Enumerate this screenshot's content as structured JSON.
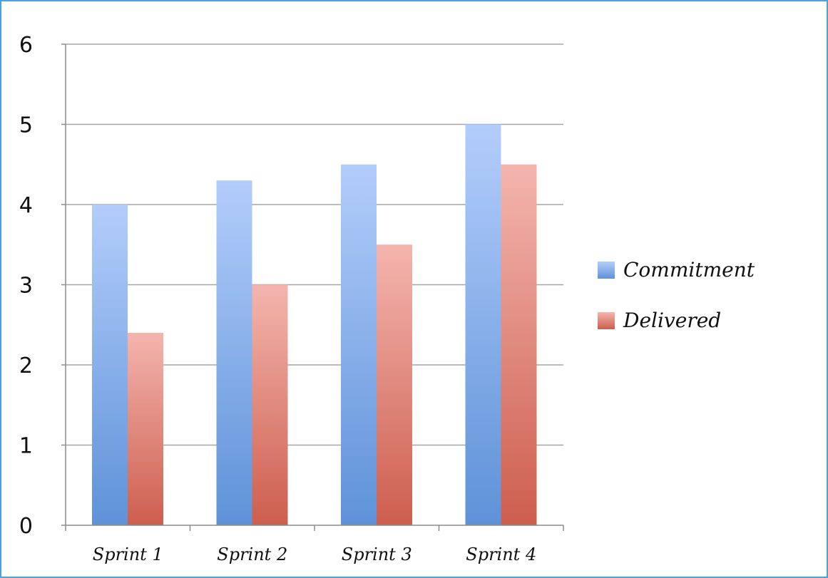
{
  "chart_data": {
    "type": "bar",
    "categories": [
      "Sprint 1",
      "Sprint 2",
      "Sprint 3",
      "Sprint 4"
    ],
    "series": [
      {
        "name": "Commitment",
        "values": [
          4,
          4.3,
          4.5,
          5
        ],
        "color_top": "#b3cdfb",
        "color_bottom": "#5e92d8"
      },
      {
        "name": "Delivered",
        "values": [
          2.4,
          3,
          3.5,
          4.5
        ],
        "color_top": "#f4b5ae",
        "color_bottom": "#cd5e4e"
      }
    ],
    "ylim": [
      0,
      6
    ],
    "yticks": [
      "0",
      "1",
      "2",
      "3",
      "4",
      "5",
      "6"
    ],
    "title": "",
    "xlabel": "",
    "ylabel": "",
    "grid": true,
    "legend_position": "right"
  },
  "colors": {
    "frame_border": "#4aa3df",
    "gridline": "#a6a6a6",
    "axis": "#8c8c8c"
  }
}
